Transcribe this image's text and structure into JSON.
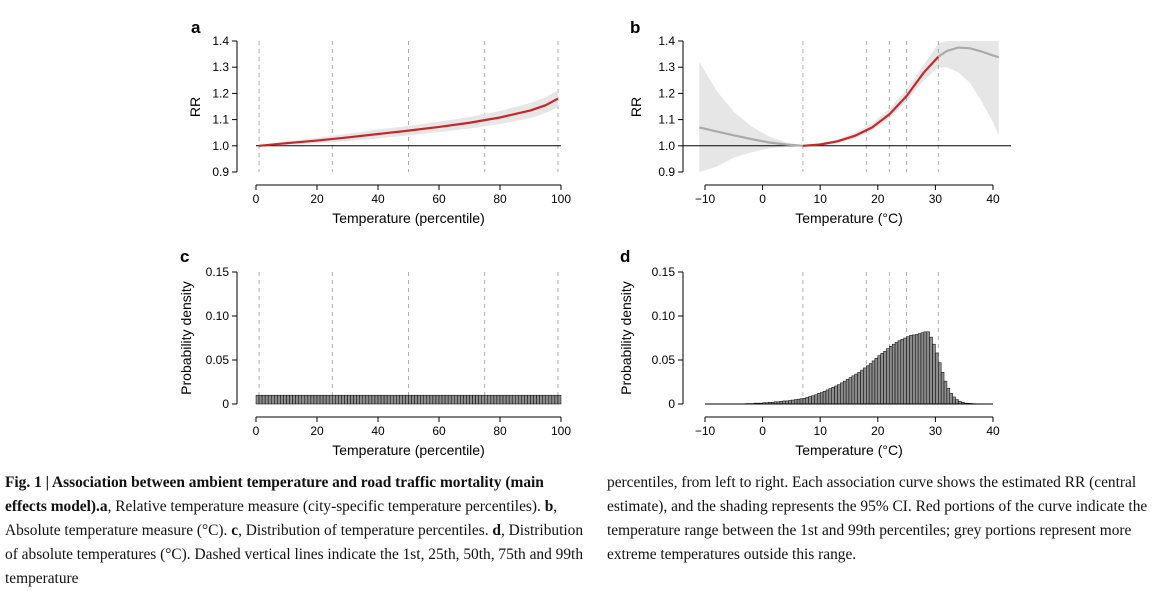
{
  "chart_data": [
    {
      "panel": "a",
      "type": "line",
      "xlabel": "Temperature (percentile)",
      "ylabel": "RR",
      "xlim": [
        0,
        100
      ],
      "ylim": [
        0.9,
        1.4
      ],
      "xticks": [
        "0",
        "20",
        "40",
        "60",
        "80",
        "100"
      ],
      "yticks": [
        "0.9",
        "1.0",
        "1.1",
        "1.2",
        "1.3",
        "1.4"
      ],
      "reference_line": 1.0,
      "dashed_vlines": [
        1,
        25,
        50,
        75,
        99
      ],
      "series": [
        {
          "color": "#c8272a",
          "x": [
            1,
            10,
            20,
            30,
            40,
            50,
            60,
            70,
            80,
            90,
            95,
            99
          ],
          "y": [
            1.0,
            1.01,
            1.02,
            1.032,
            1.045,
            1.058,
            1.072,
            1.088,
            1.108,
            1.135,
            1.155,
            1.18
          ],
          "ci_low": [
            1.0,
            1.003,
            1.01,
            1.018,
            1.028,
            1.04,
            1.052,
            1.066,
            1.083,
            1.106,
            1.125,
            1.148
          ],
          "ci_high": [
            1.0,
            1.017,
            1.03,
            1.046,
            1.062,
            1.076,
            1.092,
            1.11,
            1.133,
            1.164,
            1.186,
            1.212
          ]
        }
      ]
    },
    {
      "panel": "b",
      "type": "line",
      "xlabel": "Temperature (°C)",
      "ylabel": "RR",
      "xlim": [
        -12,
        41
      ],
      "ylim": [
        0.9,
        1.4
      ],
      "xticks": [
        "−10",
        "0",
        "10",
        "20",
        "30",
        "40"
      ],
      "yticks": [
        "0.9",
        "1.0",
        "1.1",
        "1.2",
        "1.3",
        "1.4"
      ],
      "reference_line": 1.0,
      "dashed_vlines": [
        7,
        18,
        22,
        25,
        30.5
      ],
      "series": [
        {
          "color": "#aaaaaa",
          "x": [
            -11,
            -8,
            -5,
            -2,
            1,
            4,
            7
          ],
          "y": [
            1.07,
            1.055,
            1.04,
            1.026,
            1.013,
            1.005,
            1.0
          ]
        },
        {
          "color": "#c8272a",
          "x": [
            7,
            10,
            13,
            16,
            19,
            22,
            25,
            28,
            30.5
          ],
          "y": [
            1.0,
            1.005,
            1.017,
            1.038,
            1.07,
            1.12,
            1.19,
            1.28,
            1.34
          ]
        },
        {
          "color": "#aaaaaa",
          "x": [
            30.5,
            32,
            34,
            36,
            38,
            40,
            41
          ],
          "y": [
            1.34,
            1.362,
            1.375,
            1.372,
            1.36,
            1.345,
            1.338
          ]
        }
      ],
      "ci_band": {
        "x": [
          -11,
          -8,
          -5,
          -2,
          1,
          4,
          7,
          10,
          13,
          16,
          19,
          22,
          25,
          28,
          30.5,
          32,
          34,
          36,
          38,
          40,
          41
        ],
        "low": [
          0.88,
          0.92,
          0.955,
          0.975,
          0.99,
          0.997,
          1.0,
          1.0,
          1.01,
          1.028,
          1.058,
          1.105,
          1.17,
          1.25,
          1.3,
          1.3,
          1.28,
          1.24,
          1.17,
          1.09,
          1.04
        ],
        "high": [
          1.32,
          1.21,
          1.13,
          1.075,
          1.037,
          1.013,
          1.0,
          1.01,
          1.025,
          1.05,
          1.085,
          1.14,
          1.215,
          1.31,
          1.39,
          1.43,
          1.47,
          1.5,
          1.53,
          1.57,
          1.6
        ]
      }
    },
    {
      "panel": "c",
      "type": "bar",
      "xlabel": "Temperature (percentile)",
      "ylabel": "Probability density",
      "xlim": [
        0,
        100
      ],
      "ylim": [
        0,
        0.15
      ],
      "xticks": [
        "0",
        "20",
        "40",
        "60",
        "80",
        "100"
      ],
      "yticks": [
        "0",
        "0.05",
        "0.10",
        "0.15"
      ],
      "dashed_vlines": [
        1,
        25,
        50,
        75,
        99
      ],
      "bin_width": 1,
      "bin_start": 0,
      "values": [
        0.01,
        0.01,
        0.01,
        0.01,
        0.01,
        0.01,
        0.01,
        0.01,
        0.01,
        0.01,
        0.01,
        0.01,
        0.01,
        0.01,
        0.01,
        0.01,
        0.01,
        0.01,
        0.01,
        0.01,
        0.01,
        0.01,
        0.01,
        0.01,
        0.01,
        0.01,
        0.01,
        0.01,
        0.01,
        0.01,
        0.01,
        0.01,
        0.01,
        0.01,
        0.01,
        0.01,
        0.01,
        0.01,
        0.01,
        0.01,
        0.01,
        0.01,
        0.01,
        0.01,
        0.01,
        0.01,
        0.01,
        0.01,
        0.01,
        0.01,
        0.01,
        0.01,
        0.01,
        0.01,
        0.01,
        0.01,
        0.01,
        0.01,
        0.01,
        0.01,
        0.01,
        0.01,
        0.01,
        0.01,
        0.01,
        0.01,
        0.01,
        0.01,
        0.01,
        0.01,
        0.01,
        0.01,
        0.01,
        0.01,
        0.01,
        0.01,
        0.01,
        0.01,
        0.01,
        0.01,
        0.01,
        0.01,
        0.01,
        0.01,
        0.01,
        0.01,
        0.01,
        0.01,
        0.01,
        0.01,
        0.01,
        0.01,
        0.01,
        0.01,
        0.01,
        0.01,
        0.01,
        0.01,
        0.01,
        0.01
      ]
    },
    {
      "panel": "d",
      "type": "bar",
      "xlabel": "Temperature (°C)",
      "ylabel": "Probability density",
      "xlim": [
        -12,
        41
      ],
      "ylim": [
        0,
        0.15
      ],
      "xticks": [
        "−10",
        "0",
        "10",
        "20",
        "30",
        "40"
      ],
      "yticks": [
        "0",
        "0.05",
        "0.10",
        "0.15"
      ],
      "dashed_vlines": [
        7,
        18,
        22,
        25,
        30.5
      ],
      "bin_width": 0.5,
      "bin_start": -10,
      "values": [
        0.0,
        0.0,
        0.0,
        0.0,
        0.0,
        0.0,
        0.0,
        0.0,
        0.0,
        0.0,
        0.0,
        0.0,
        0.0,
        0.0,
        0.0005,
        0.0005,
        0.0005,
        0.001,
        0.001,
        0.001,
        0.0015,
        0.0015,
        0.002,
        0.002,
        0.0025,
        0.0025,
        0.003,
        0.0035,
        0.0035,
        0.004,
        0.0045,
        0.005,
        0.0055,
        0.006,
        0.0065,
        0.0075,
        0.0085,
        0.0095,
        0.0105,
        0.012,
        0.013,
        0.0145,
        0.016,
        0.0175,
        0.019,
        0.0205,
        0.022,
        0.024,
        0.026,
        0.028,
        0.03,
        0.032,
        0.034,
        0.036,
        0.0385,
        0.041,
        0.0435,
        0.046,
        0.049,
        0.052,
        0.055,
        0.0575,
        0.06,
        0.063,
        0.0655,
        0.068,
        0.07,
        0.072,
        0.0735,
        0.075,
        0.0765,
        0.078,
        0.0785,
        0.079,
        0.08,
        0.081,
        0.082,
        0.082,
        0.076,
        0.068,
        0.058,
        0.047,
        0.036,
        0.026,
        0.018,
        0.012,
        0.008,
        0.005,
        0.003,
        0.002,
        0.001,
        0.0008,
        0.0006,
        0.0004,
        0.0003,
        0.0002,
        0.0001,
        0.0001,
        0.0,
        0.0
      ]
    }
  ],
  "panels": {
    "a": {
      "letter": "a",
      "xlabel": "Temperature (percentile)",
      "ylabel": "RR"
    },
    "b": {
      "letter": "b",
      "xlabel": "Temperature (°C)",
      "ylabel": "RR"
    },
    "c": {
      "letter": "c",
      "xlabel": "Temperature (percentile)",
      "ylabel": "Probability density"
    },
    "d": {
      "letter": "d",
      "xlabel": "Temperature (°C)",
      "ylabel": "Probability density"
    }
  },
  "caption": {
    "lead": "Fig. 1 | Association between ambient temperature and road traffic mortality (main effects model).",
    "part_a_label": "a",
    "part_a": ", Relative temperature measure (city-specific temperature percentiles). ",
    "part_b_label": "b",
    "part_b": ", Absolute temperature measure (°C). ",
    "part_c_label": "c",
    "part_c": ", Distribution of temperature percentiles. ",
    "part_d_label": "d",
    "part_d": ", Distribution of absolute temperatures (°C). Dashed vertical lines indicate the 1st, 25th, 50th, 75th and 99th temperature",
    "continued": "percentiles, from left to right. Each association curve shows the estimated RR (central estimate), and the shading represents the 95% CI. Red portions of the curve indicate the temperature range between the 1st and 99th percentiles; grey portions represent more extreme temperatures outside this range."
  },
  "colors": {
    "red": "#c8272a",
    "grey_line": "#aaaaaa",
    "ci_shade": "#e6e6e6",
    "bar_fill": "#8c8c8c"
  }
}
